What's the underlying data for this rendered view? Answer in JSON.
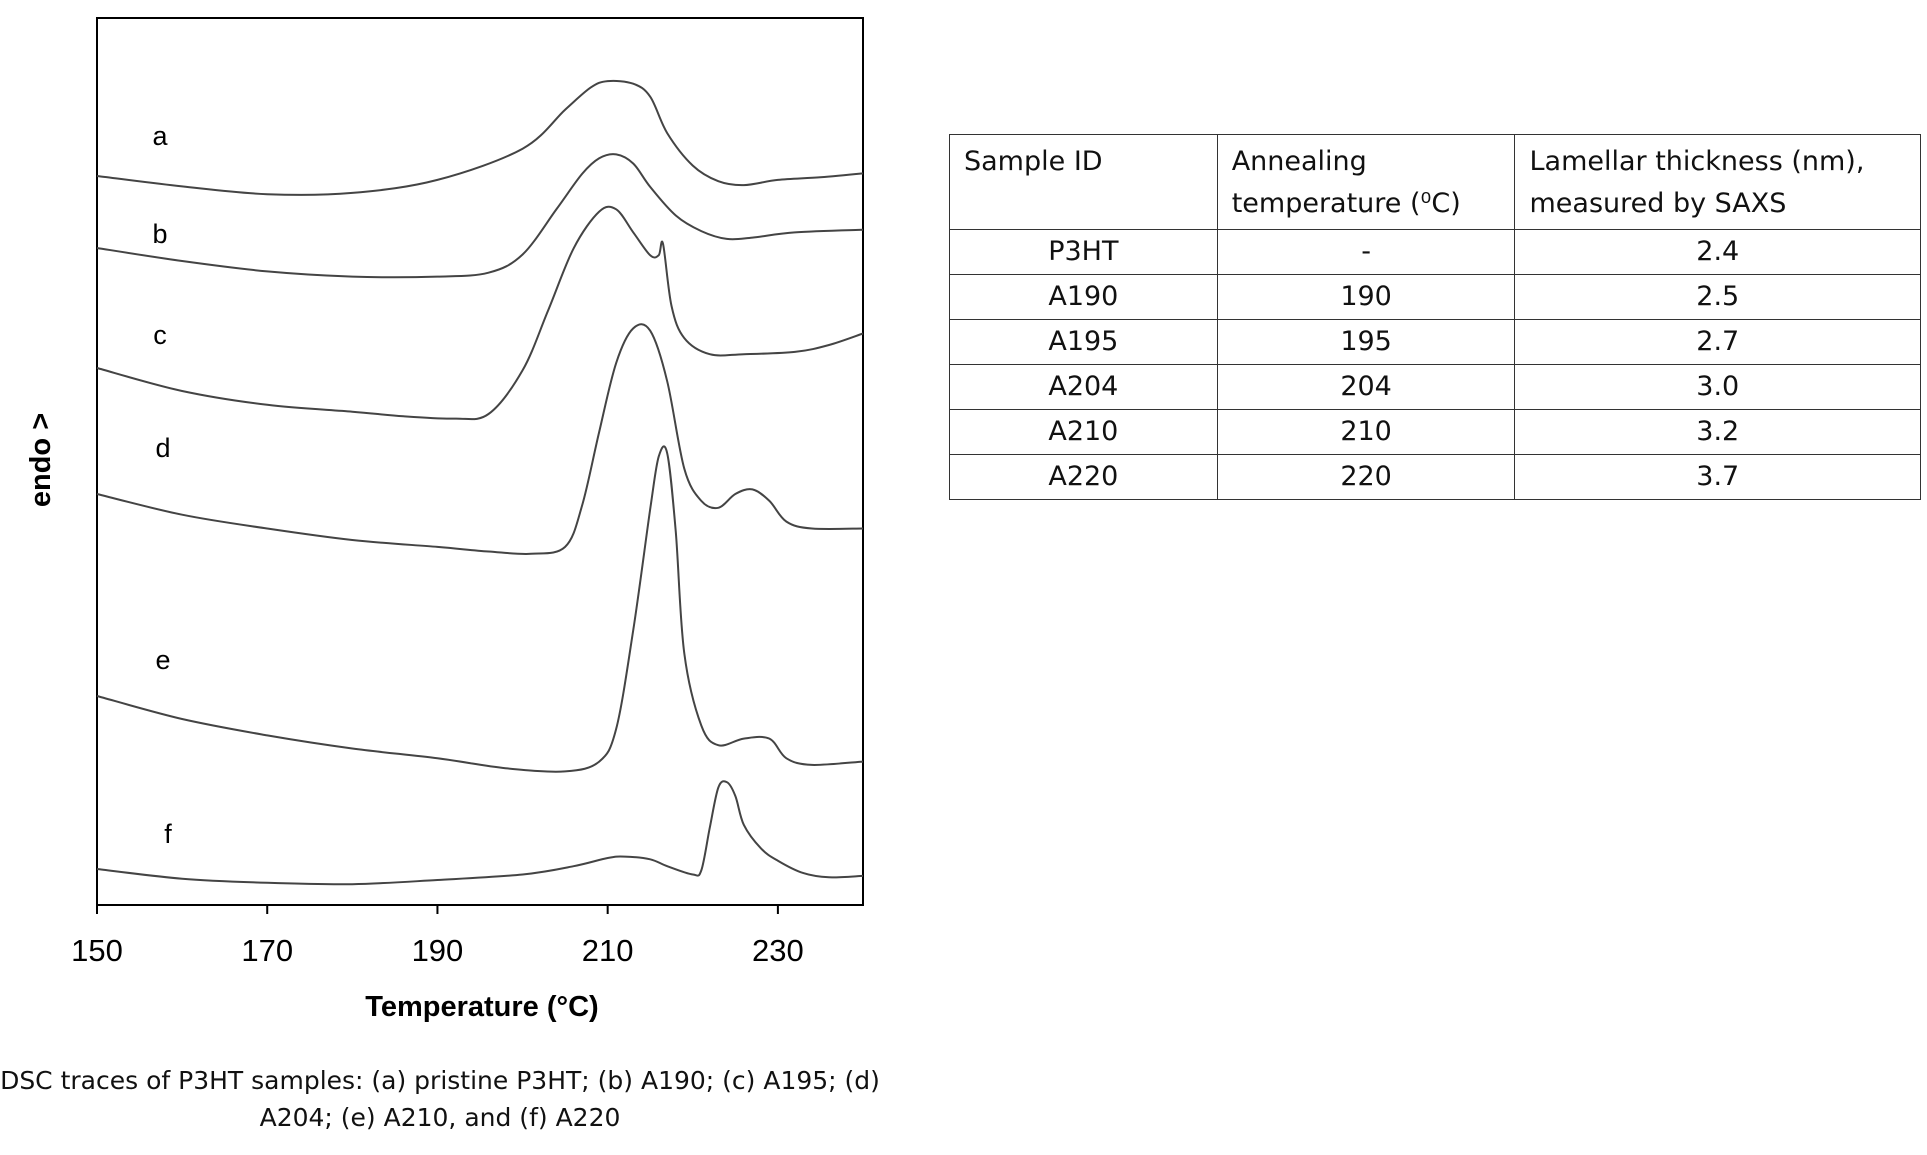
{
  "chart_data": {
    "type": "line",
    "xlabel": "Temperature (°C)",
    "ylabel": "endo >",
    "xlim": [
      150,
      240
    ],
    "xticks": [
      "150",
      "170",
      "190",
      "210",
      "230"
    ],
    "grid": false,
    "series": [
      {
        "name": "a",
        "points": [
          [
            150,
            0.25
          ],
          [
            160,
            0.17
          ],
          [
            170,
            0.11
          ],
          [
            180,
            0.12
          ],
          [
            190,
            0.22
          ],
          [
            200,
            0.46
          ],
          [
            205,
            0.76
          ],
          [
            208,
            0.93
          ],
          [
            210,
            0.98
          ],
          [
            213,
            0.96
          ],
          [
            215,
            0.86
          ],
          [
            217,
            0.58
          ],
          [
            220,
            0.33
          ],
          [
            223,
            0.21
          ],
          [
            226,
            0.18
          ],
          [
            230,
            0.22
          ],
          [
            235,
            0.24
          ],
          [
            240,
            0.27
          ]
        ]
      },
      {
        "name": "b",
        "points": [
          [
            150,
            0.25
          ],
          [
            160,
            0.15
          ],
          [
            170,
            0.07
          ],
          [
            180,
            0.03
          ],
          [
            190,
            0.03
          ],
          [
            196,
            0.06
          ],
          [
            200,
            0.2
          ],
          [
            204,
            0.55
          ],
          [
            207,
            0.82
          ],
          [
            209,
            0.94
          ],
          [
            211,
            0.97
          ],
          [
            213,
            0.9
          ],
          [
            215,
            0.72
          ],
          [
            218,
            0.5
          ],
          [
            221,
            0.38
          ],
          [
            224,
            0.32
          ],
          [
            227,
            0.33
          ],
          [
            232,
            0.37
          ],
          [
            240,
            0.39
          ]
        ]
      },
      {
        "name": "c",
        "points": [
          [
            150,
            0.25
          ],
          [
            160,
            0.15
          ],
          [
            170,
            0.09
          ],
          [
            180,
            0.06
          ],
          [
            186,
            0.04
          ],
          [
            192,
            0.03
          ],
          [
            196,
            0.05
          ],
          [
            200,
            0.24
          ],
          [
            203,
            0.5
          ],
          [
            206,
            0.77
          ],
          [
            209,
            0.93
          ],
          [
            211,
            0.94
          ],
          [
            213,
            0.84
          ],
          [
            215,
            0.74
          ],
          [
            216,
            0.74
          ],
          [
            216.5,
            0.79
          ],
          [
            217.5,
            0.52
          ],
          [
            219,
            0.38
          ],
          [
            222,
            0.31
          ],
          [
            226,
            0.31
          ],
          [
            232,
            0.32
          ],
          [
            236,
            0.35
          ],
          [
            240,
            0.4
          ]
        ]
      },
      {
        "name": "d",
        "points": [
          [
            150,
            0.25
          ],
          [
            160,
            0.16
          ],
          [
            170,
            0.1
          ],
          [
            180,
            0.05
          ],
          [
            190,
            0.02
          ],
          [
            196,
            0.0
          ],
          [
            201,
            -0.01
          ],
          [
            205,
            0.02
          ],
          [
            207,
            0.2
          ],
          [
            209,
            0.52
          ],
          [
            211,
            0.82
          ],
          [
            213,
            0.97
          ],
          [
            215,
            0.96
          ],
          [
            217,
            0.74
          ],
          [
            219,
            0.36
          ],
          [
            221,
            0.22
          ],
          [
            223,
            0.19
          ],
          [
            225,
            0.25
          ],
          [
            227,
            0.27
          ],
          [
            229,
            0.22
          ],
          [
            231,
            0.13
          ],
          [
            234,
            0.1
          ],
          [
            240,
            0.1
          ]
        ]
      },
      {
        "name": "e",
        "points": [
          [
            150,
            0.25
          ],
          [
            160,
            0.18
          ],
          [
            170,
            0.13
          ],
          [
            180,
            0.09
          ],
          [
            190,
            0.06
          ],
          [
            198,
            0.03
          ],
          [
            205,
            0.02
          ],
          [
            209,
            0.05
          ],
          [
            211,
            0.15
          ],
          [
            213,
            0.45
          ],
          [
            215,
            0.82
          ],
          [
            216,
            0.98
          ],
          [
            217,
            0.99
          ],
          [
            218,
            0.75
          ],
          [
            219,
            0.38
          ],
          [
            221,
            0.16
          ],
          [
            223,
            0.1
          ],
          [
            226,
            0.12
          ],
          [
            229,
            0.12
          ],
          [
            231,
            0.06
          ],
          [
            234,
            0.04
          ],
          [
            240,
            0.05
          ]
        ]
      },
      {
        "name": "f",
        "points": [
          [
            150,
            0.25
          ],
          [
            160,
            0.18
          ],
          [
            170,
            0.15
          ],
          [
            180,
            0.14
          ],
          [
            190,
            0.17
          ],
          [
            200,
            0.21
          ],
          [
            206,
            0.27
          ],
          [
            210,
            0.33
          ],
          [
            212,
            0.34
          ],
          [
            215,
            0.32
          ],
          [
            217,
            0.27
          ],
          [
            220,
            0.21
          ],
          [
            221,
            0.24
          ],
          [
            222,
            0.55
          ],
          [
            223,
            0.84
          ],
          [
            224,
            0.88
          ],
          [
            225,
            0.78
          ],
          [
            226,
            0.57
          ],
          [
            228,
            0.4
          ],
          [
            230,
            0.31
          ],
          [
            233,
            0.22
          ],
          [
            236,
            0.19
          ],
          [
            240,
            0.2
          ]
        ]
      }
    ]
  },
  "caption_line1": "DSC traces of P3HT samples: (a) pristine P3HT; (b) A190; (c) A195; (d)",
  "caption_line2": "A204; (e) A210, and (f) A220",
  "table": {
    "headers": [
      "Sample ID",
      "Annealing temperature (⁰C)",
      "Lamellar thickness (nm), measured by SAXS"
    ],
    "rows": [
      [
        "P3HT",
        "-",
        "2.4"
      ],
      [
        "A190",
        "190",
        "2.5"
      ],
      [
        "A195",
        "195",
        "2.7"
      ],
      [
        "A204",
        "204",
        "3.0"
      ],
      [
        "A210",
        "210",
        "3.2"
      ],
      [
        "A220",
        "220",
        "3.7"
      ]
    ]
  }
}
